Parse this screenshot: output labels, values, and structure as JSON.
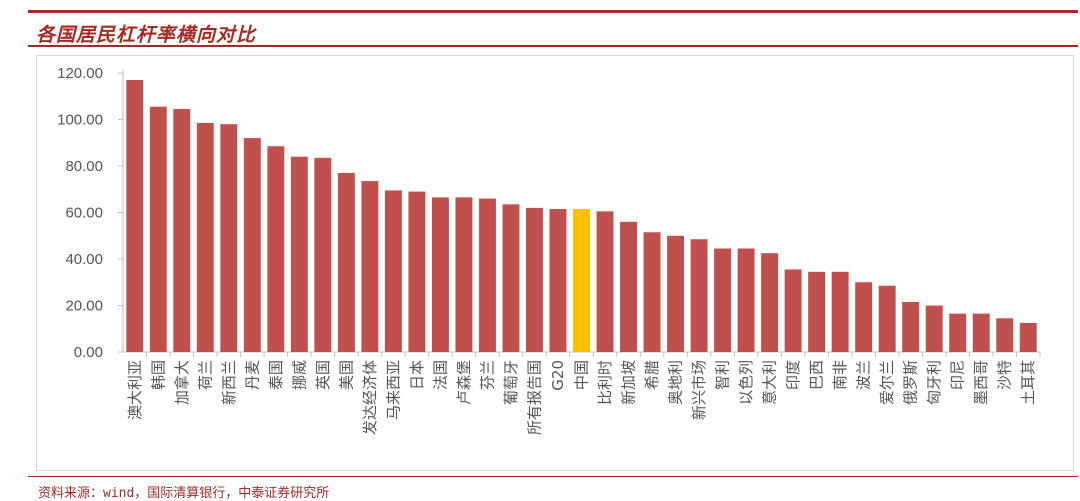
{
  "header": {
    "title": "各国居民杠杆率横向对比"
  },
  "footer": {
    "source": "资料来源：wind，国际清算银行，中泰证券研究所"
  },
  "colors": {
    "bar": "#c0504d",
    "highlight": "#ffc000",
    "axis": "#bfbfbf",
    "accent": "#a52a26"
  },
  "chart_data": {
    "type": "bar",
    "title": "",
    "xlabel": "",
    "ylabel": "",
    "ylim": [
      0,
      120
    ],
    "yticks": [
      "0.00",
      "20.00",
      "40.00",
      "60.00",
      "80.00",
      "100.00",
      "120.00"
    ],
    "grid": false,
    "legend": "none",
    "highlight_category": "中国",
    "categories": [
      "澳大利亚",
      "韩国",
      "加拿大",
      "荷兰",
      "新西兰",
      "丹麦",
      "泰国",
      "挪威",
      "英国",
      "美国",
      "发达经济体",
      "马来西亚",
      "日本",
      "法国",
      "卢森堡",
      "芬兰",
      "葡萄牙",
      "所有报告国",
      "G20",
      "中国",
      "比利时",
      "新加坡",
      "希腊",
      "奥地利",
      "新兴市场",
      "智利",
      "以色列",
      "意大利",
      "印度",
      "巴西",
      "南非",
      "波兰",
      "爱尔兰",
      "俄罗斯",
      "匈牙利",
      "印尼",
      "墨西哥",
      "沙特",
      "土耳其"
    ],
    "values": [
      117,
      105.5,
      104.5,
      98.5,
      98,
      92,
      88.5,
      84,
      83.5,
      77,
      73.5,
      69.5,
      69,
      66.5,
      66.5,
      66,
      63.5,
      62,
      61.5,
      61.5,
      60.5,
      56,
      51.5,
      50,
      48.5,
      44.5,
      44.5,
      42.5,
      35.5,
      34.5,
      34.5,
      30,
      28.5,
      21.5,
      20,
      16.5,
      16.5,
      14.5,
      12.5
    ]
  }
}
